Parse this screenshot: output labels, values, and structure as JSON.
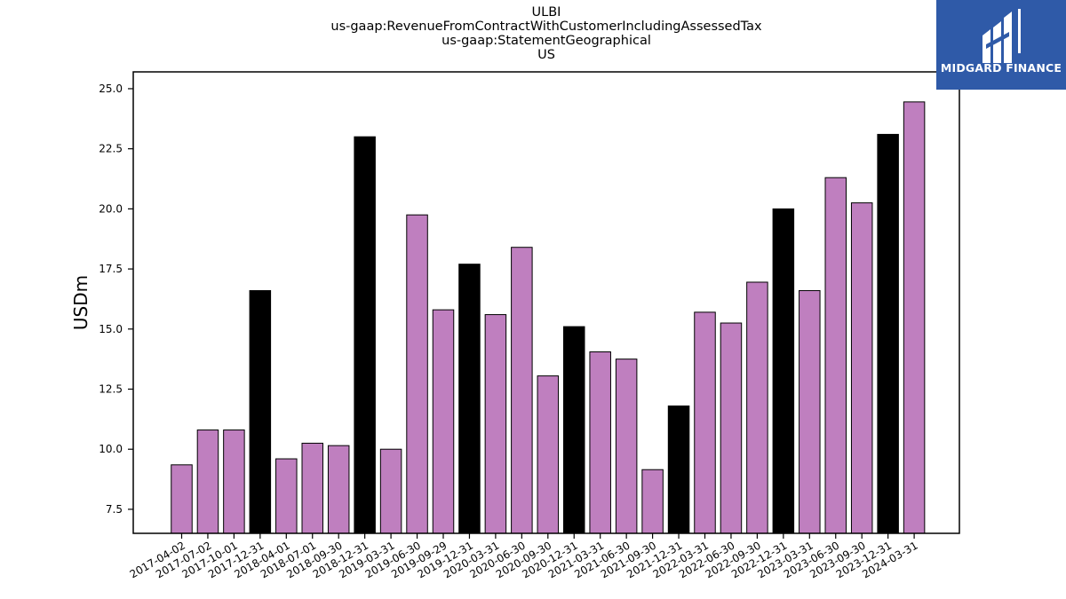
{
  "logo": {
    "text": "MIDGARD FINANCE",
    "background": "#2f5aa8"
  },
  "chart_data": {
    "type": "bar",
    "title_lines": [
      "ULBI",
      "us-gaap:RevenueFromContractWithCustomerIncludingAssessedTax",
      "us-gaap:StatementGeographical",
      "US"
    ],
    "xlabel": "",
    "ylabel": "USDm",
    "ylim": [
      6.5,
      25.7
    ],
    "yticks": [
      "7.5",
      "10.0",
      "12.5",
      "15.0",
      "17.5",
      "20.0",
      "22.5",
      "25.0"
    ],
    "grid": false,
    "colors": {
      "quarter": "#bf7fbf",
      "year_end": "#000000",
      "edge": "#000000"
    },
    "categories": [
      "2017-04-02",
      "2017-07-02",
      "2017-10-01",
      "2017-12-31",
      "2018-04-01",
      "2018-07-01",
      "2018-09-30",
      "2018-12-31",
      "2019-03-31",
      "2019-06-30",
      "2019-09-29",
      "2019-12-31",
      "2020-03-31",
      "2020-06-30",
      "2020-09-30",
      "2020-12-31",
      "2021-03-31",
      "2021-06-30",
      "2021-09-30",
      "2021-12-31",
      "2022-03-31",
      "2022-06-30",
      "2022-09-30",
      "2022-12-31",
      "2023-03-31",
      "2023-06-30",
      "2023-09-30",
      "2023-12-31",
      "2024-03-31"
    ],
    "values": [
      9.35,
      10.8,
      10.8,
      16.6,
      9.6,
      10.25,
      10.15,
      23.0,
      10.0,
      19.75,
      15.8,
      17.7,
      15.6,
      18.4,
      13.05,
      15.1,
      14.05,
      13.75,
      9.15,
      11.8,
      15.7,
      15.25,
      16.95,
      20.0,
      16.6,
      21.3,
      20.25,
      23.1,
      24.45
    ],
    "year_end_flags": [
      false,
      false,
      false,
      true,
      false,
      false,
      false,
      true,
      false,
      false,
      false,
      true,
      false,
      false,
      false,
      true,
      false,
      false,
      false,
      true,
      false,
      false,
      false,
      true,
      false,
      false,
      false,
      true,
      false
    ]
  }
}
